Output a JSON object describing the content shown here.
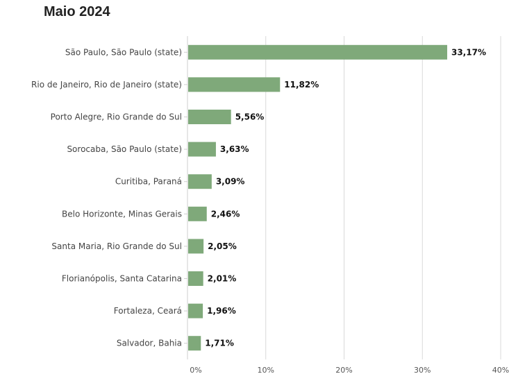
{
  "chart_data": {
    "type": "bar",
    "orientation": "horizontal",
    "title": "Maio 2024",
    "categories": [
      "São Paulo, São Paulo (state)",
      "Rio de Janeiro, Rio de Janeiro (state)",
      "Porto Alegre, Rio Grande do Sul",
      "Sorocaba, São Paulo (state)",
      "Curitiba, Paraná",
      "Belo Horizonte, Minas Gerais",
      "Santa Maria, Rio Grande do Sul",
      "Florianópolis, Santa Catarina",
      "Fortaleza, Ceará",
      "Salvador, Bahia"
    ],
    "values": [
      33.17,
      11.82,
      5.56,
      3.63,
      3.09,
      2.46,
      2.05,
      2.01,
      1.96,
      1.71
    ],
    "value_labels": [
      "33,17%",
      "11,82%",
      "5,56%",
      "3,63%",
      "3,09%",
      "2,46%",
      "2,05%",
      "2,01%",
      "1,96%",
      "1,71%"
    ],
    "xlim": [
      0,
      40
    ],
    "xticks": [
      0,
      10,
      20,
      30,
      40
    ],
    "xtick_labels": [
      "0%",
      "10%",
      "20%",
      "30%",
      "40%"
    ],
    "grid": true,
    "bar_color": "#7fa97a"
  }
}
